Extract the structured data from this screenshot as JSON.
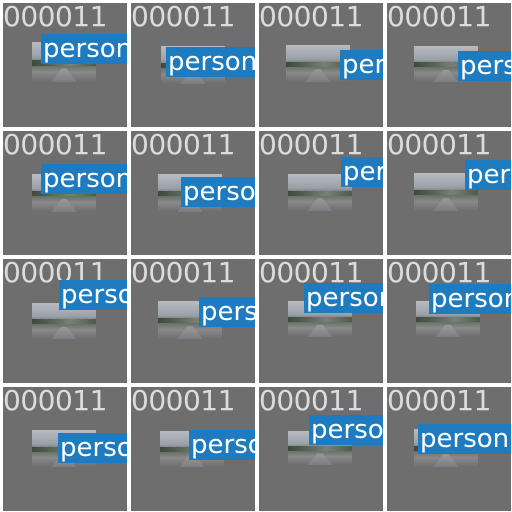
{
  "tiles": [
    {
      "label": "000011",
      "detection": "person"
    },
    {
      "label": "000011",
      "detection": "person"
    },
    {
      "label": "000011",
      "detection": "person"
    },
    {
      "label": "000011",
      "detection": "person"
    },
    {
      "label": "000011",
      "detection": "person"
    },
    {
      "label": "000011",
      "detection": "person"
    },
    {
      "label": "000011",
      "detection": "person"
    },
    {
      "label": "000011",
      "detection": "person"
    },
    {
      "label": "000011",
      "detection": "person"
    },
    {
      "label": "000011",
      "detection": "person"
    },
    {
      "label": "000011",
      "detection": "person"
    },
    {
      "label": "000011",
      "detection": "person"
    },
    {
      "label": "000011",
      "detection": "person"
    },
    {
      "label": "000011",
      "detection": "person"
    },
    {
      "label": "000011",
      "detection": "person"
    },
    {
      "label": "000011",
      "detection": "person"
    }
  ],
  "colors": {
    "tile_background": "#6e6e6e",
    "label_text": "#dcdcdc",
    "detection_box": "#1f7bbf"
  }
}
